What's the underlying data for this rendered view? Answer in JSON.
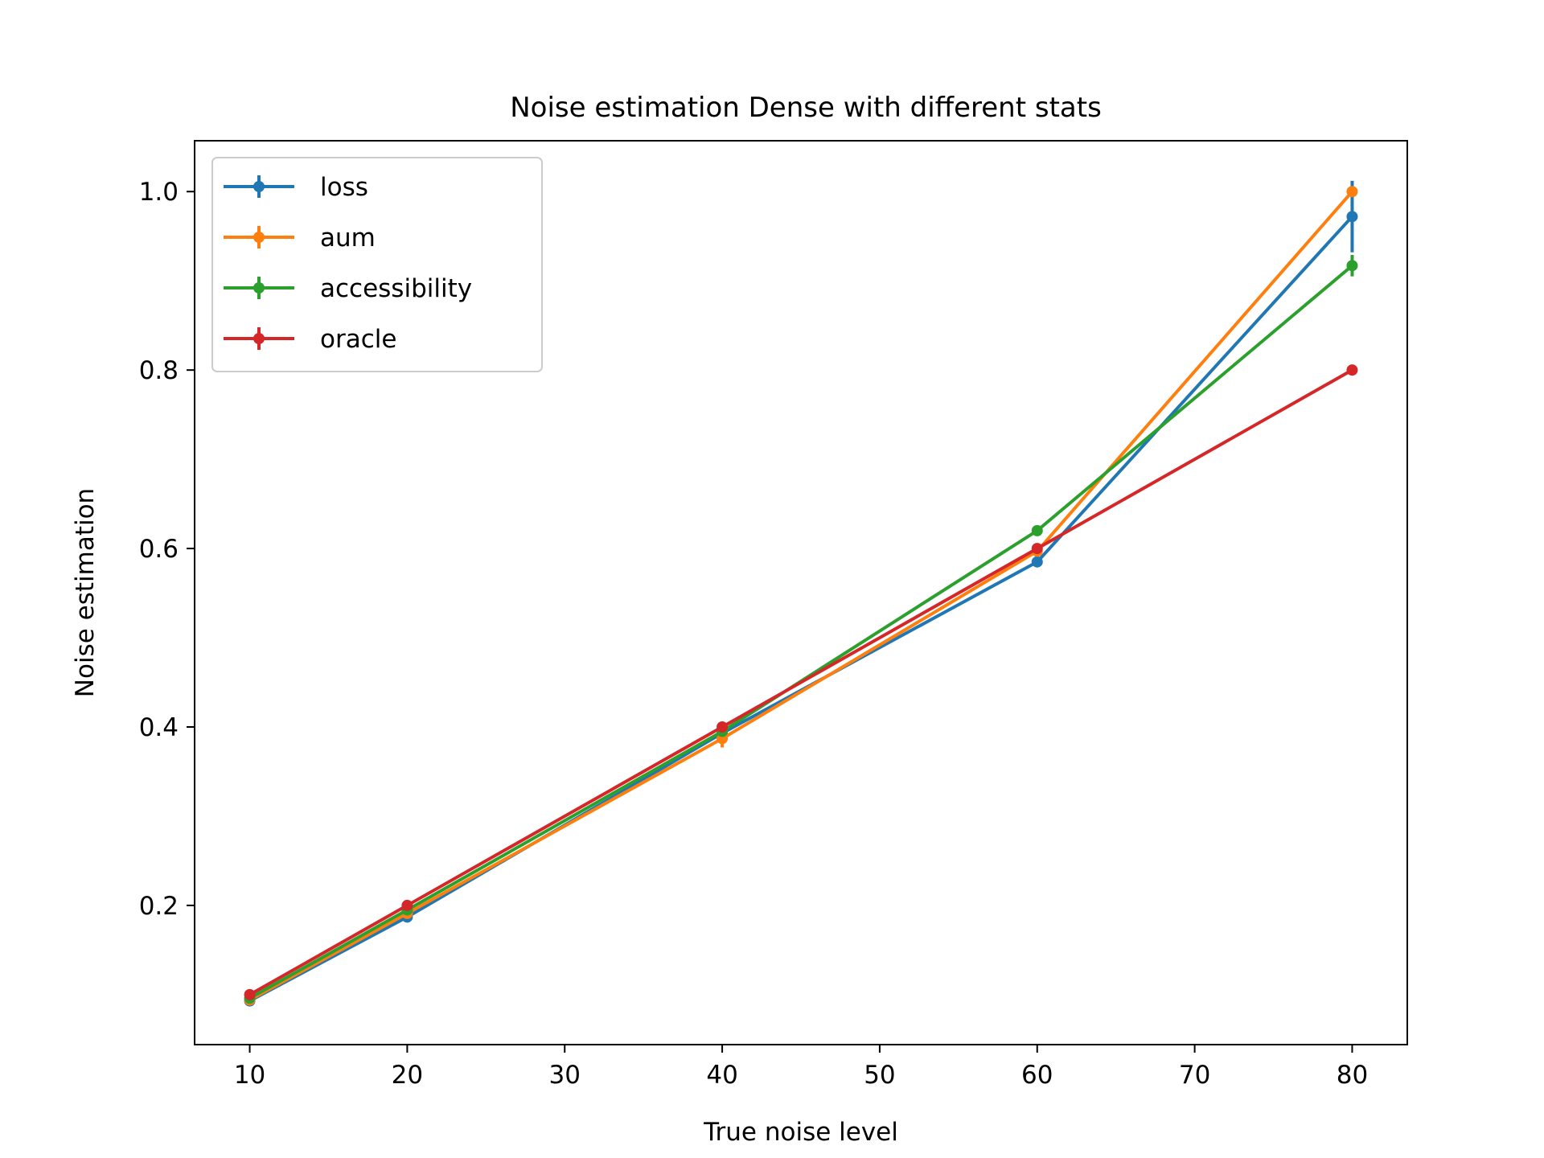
{
  "chart_data": {
    "type": "line",
    "title": "Noise estimation Dense with different stats",
    "xlabel": "True noise level",
    "ylabel": "Noise estimation",
    "xlim": [
      6.5,
      83.5
    ],
    "ylim": [
      0.044,
      1.057
    ],
    "xticks": [
      10,
      20,
      30,
      40,
      50,
      60,
      70,
      80
    ],
    "xtick_labels": [
      "10",
      "20",
      "30",
      "40",
      "50",
      "60",
      "70",
      "80"
    ],
    "yticks": [
      0.2,
      0.4,
      0.6,
      0.8,
      1.0
    ],
    "ytick_labels": [
      "0.2",
      "0.4",
      "0.6",
      "0.8",
      "1.0"
    ],
    "grid": false,
    "legend_position": "top-left",
    "x": [
      10,
      20,
      40,
      60,
      80
    ],
    "series": [
      {
        "name": "loss",
        "color": "#1f77b4",
        "values": [
          0.093,
          0.187,
          0.393,
          0.585,
          0.972
        ],
        "errors": [
          0.003,
          0.004,
          0.005,
          0.004,
          0.04
        ]
      },
      {
        "name": "aum",
        "color": "#ff7f0e",
        "values": [
          0.094,
          0.191,
          0.387,
          0.597,
          1.0
        ],
        "errors": [
          0.003,
          0.005,
          0.01,
          0.005,
          0.005
        ]
      },
      {
        "name": "accessibility",
        "color": "#2ca02c",
        "values": [
          0.096,
          0.195,
          0.395,
          0.62,
          0.917
        ],
        "errors": [
          0.003,
          0.004,
          0.005,
          0.004,
          0.012
        ]
      },
      {
        "name": "oracle",
        "color": "#d62728",
        "values": [
          0.1,
          0.2,
          0.4,
          0.6,
          0.8
        ],
        "errors": [
          0,
          0,
          0,
          0,
          0
        ]
      }
    ]
  }
}
